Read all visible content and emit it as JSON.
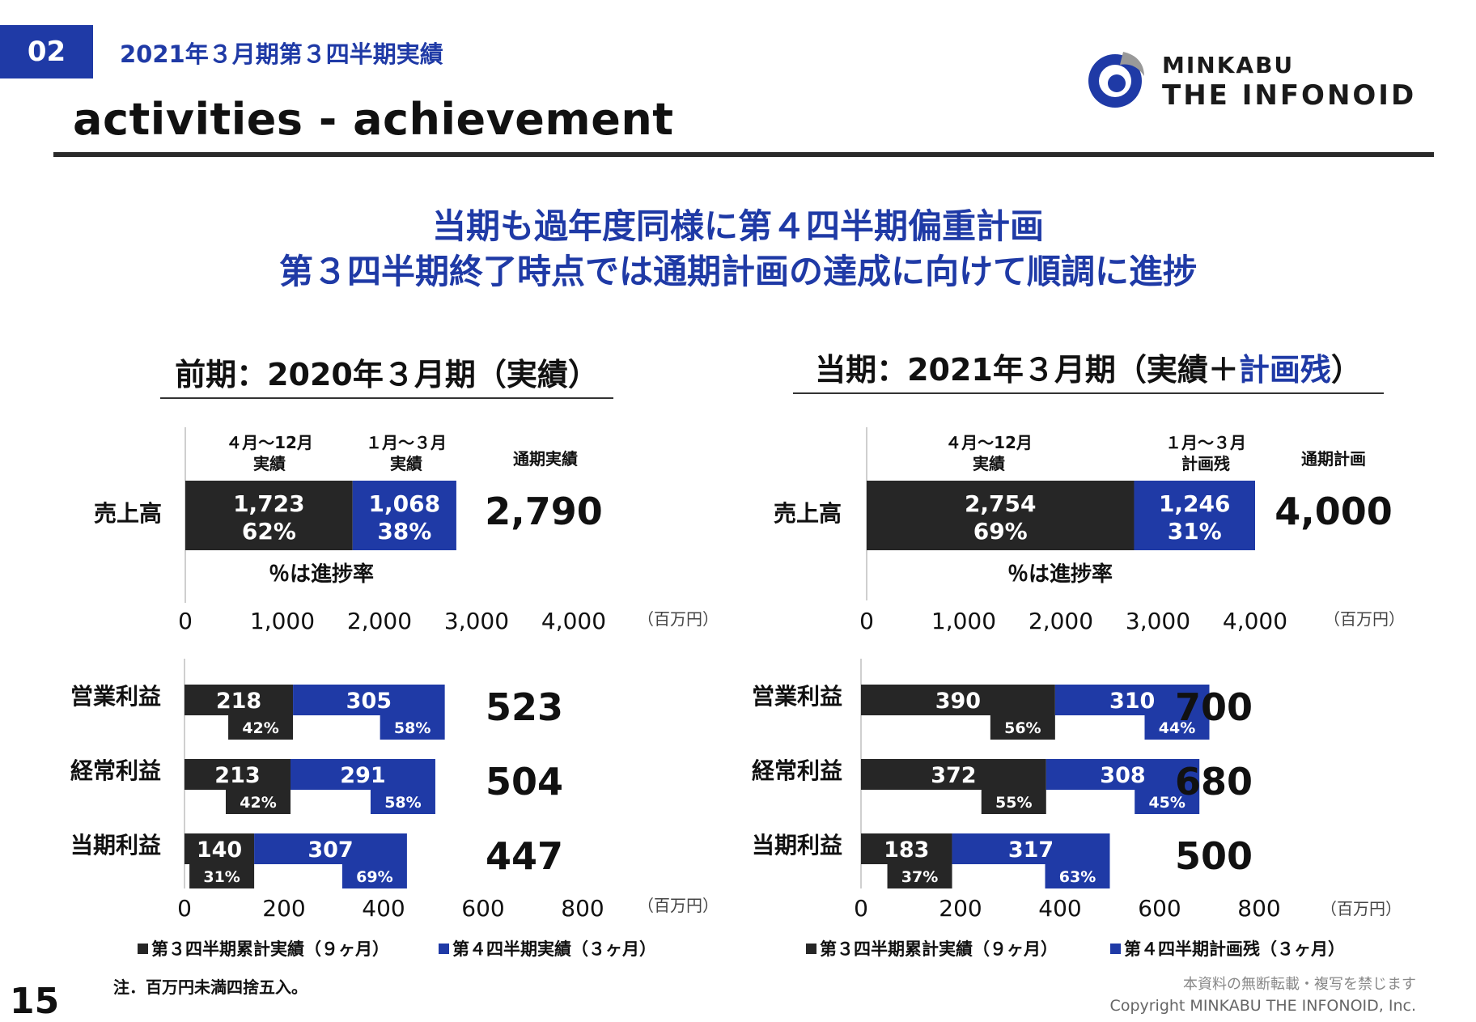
{
  "header": {
    "section_number": "02",
    "section_title": "2021年３月期第３四半期実績",
    "page_title": "activities - achievement",
    "logo_line1": "MINKABU",
    "logo_line2": "THE INFONOID"
  },
  "headline": {
    "line1": "当期も過年度同様に第４四半期偏重計画",
    "line2": "第３四半期終了時点では通期計画の達成に向けて順調に進捗"
  },
  "colors": {
    "dark": "#262626",
    "blue": "#1f3aa6"
  },
  "chart_data": [
    {
      "type": "bar",
      "heading": "前期：2020年３月期（実績）",
      "col_labels": [
        "４月〜12月\n実績",
        "１月〜３月\n実績"
      ],
      "total_header": "通期実績",
      "unit": "（百万円）",
      "progress_note": "％は進捗率",
      "xlim": [
        0,
        4000
      ],
      "ticks": [
        "0",
        "1,000",
        "2,000",
        "3,000",
        "4,000"
      ],
      "tick_values": [
        0,
        1000,
        2000,
        3000,
        4000
      ],
      "categories": [
        "売上高"
      ],
      "series": [
        {
          "values": [
            1723
          ],
          "value_labels": [
            "1,723"
          ],
          "pct_labels": [
            "62%"
          ]
        },
        {
          "values": [
            1068
          ],
          "value_labels": [
            "1,068"
          ],
          "pct_labels": [
            "38%"
          ]
        }
      ],
      "totals": [
        "2,790"
      ]
    },
    {
      "type": "bar",
      "heading_prefix": "当期：2021年３月期（実績＋",
      "heading_highlight": "計画残",
      "heading_suffix": "）",
      "col_labels": [
        "４月〜12月\n実績",
        "１月〜３月\n計画残"
      ],
      "total_header": "通期計画",
      "unit": "（百万円）",
      "progress_note": "％は進捗率",
      "xlim": [
        0,
        4000
      ],
      "ticks": [
        "0",
        "1,000",
        "2,000",
        "3,000",
        "4,000"
      ],
      "tick_values": [
        0,
        1000,
        2000,
        3000,
        4000
      ],
      "categories": [
        "売上高"
      ],
      "series": [
        {
          "values": [
            2754
          ],
          "value_labels": [
            "2,754"
          ],
          "pct_labels": [
            "69%"
          ]
        },
        {
          "values": [
            1246
          ],
          "value_labels": [
            "1,246"
          ],
          "pct_labels": [
            "31%"
          ]
        }
      ],
      "totals": [
        "4,000"
      ]
    },
    {
      "type": "bar",
      "unit": "（百万円）",
      "xlim": [
        0,
        800
      ],
      "ticks": [
        "0",
        "200",
        "400",
        "600",
        "800"
      ],
      "tick_values": [
        0,
        200,
        400,
        600,
        800
      ],
      "categories": [
        "営業利益",
        "経常利益",
        "当期利益"
      ],
      "series": [
        {
          "name": "第３四半期累計実績（９ヶ月）",
          "values": [
            218,
            213,
            140
          ],
          "value_labels": [
            "218",
            "213",
            "140"
          ],
          "pct_labels": [
            "42%",
            "42%",
            "31%"
          ]
        },
        {
          "name": "第４四半期実績（３ヶ月）",
          "values": [
            305,
            291,
            307
          ],
          "value_labels": [
            "305",
            "291",
            "307"
          ],
          "pct_labels": [
            "58%",
            "58%",
            "69%"
          ]
        }
      ],
      "totals": [
        "523",
        "504",
        "447"
      ]
    },
    {
      "type": "bar",
      "unit": "（百万円）",
      "xlim": [
        0,
        800
      ],
      "ticks": [
        "0",
        "200",
        "400",
        "600",
        "800"
      ],
      "tick_values": [
        0,
        200,
        400,
        600,
        800
      ],
      "categories": [
        "営業利益",
        "経常利益",
        "当期利益"
      ],
      "series": [
        {
          "name": "第３四半期累計実績（９ヶ月）",
          "values": [
            390,
            372,
            183
          ],
          "value_labels": [
            "390",
            "372",
            "183"
          ],
          "pct_labels": [
            "56%",
            "55%",
            "37%"
          ]
        },
        {
          "name": "第４四半期計画残（３ヶ月）",
          "values": [
            310,
            308,
            317
          ],
          "value_labels": [
            "310",
            "308",
            "317"
          ],
          "pct_labels": [
            "44%",
            "45%",
            "63%"
          ]
        }
      ],
      "totals": [
        "700",
        "680",
        "500"
      ]
    }
  ],
  "footer": {
    "note": "注．百万円未満四捨五入。",
    "page_number": "15",
    "notice": "本資料の無断転載・複写を禁じます",
    "copyright": "Copyright MINKABU THE INFONOID, Inc."
  }
}
